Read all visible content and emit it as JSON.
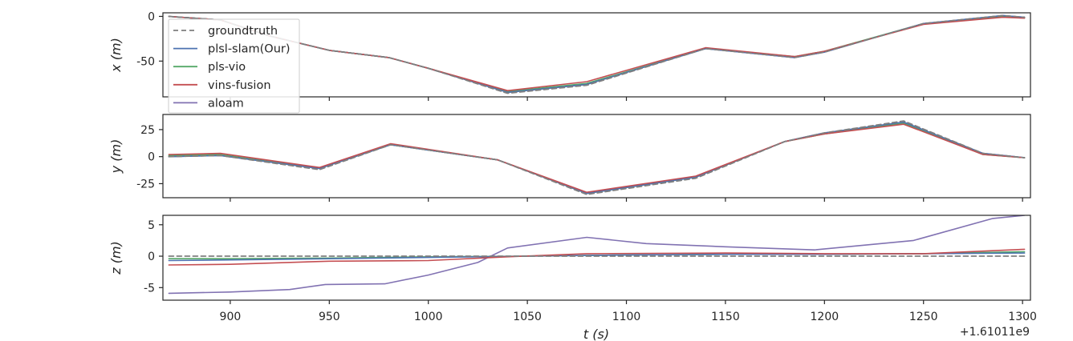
{
  "chart_data": {
    "type": "line",
    "xlabel": "t (s)",
    "x_offset_label": "+1.61011e9",
    "xlim": [
      866,
      1304
    ],
    "xticks": [
      900,
      950,
      1000,
      1050,
      1100,
      1150,
      1200,
      1250,
      1300
    ],
    "colors": {
      "groundtruth": "#7f7f7f",
      "plsl-slam(Our)": "#4c72b0",
      "pls-vio": "#55a868",
      "vins-fusion": "#c44e52",
      "aloam": "#8172b2"
    },
    "legend": {
      "placement": "upper-left",
      "entries": [
        {
          "name": "groundtruth",
          "style": "dashed"
        },
        {
          "name": "plsl-slam(Our)",
          "style": "solid"
        },
        {
          "name": "pls-vio",
          "style": "solid"
        },
        {
          "name": "vins-fusion",
          "style": "solid"
        },
        {
          "name": "aloam",
          "style": "solid"
        }
      ]
    },
    "panels": [
      {
        "ylabel": "x (m)",
        "ylim": [
          -90,
          4
        ],
        "yticks": [
          0,
          -50
        ],
        "series": [
          {
            "name": "groundtruth",
            "x": [
              869,
              895,
              920,
              950,
              980,
              1000,
              1040,
              1080,
              1140,
              1185,
              1200,
              1250,
              1290,
              1301
            ],
            "y": [
              0,
              -4,
              -22,
              -38,
              -46,
              -58,
              -86,
              -77,
              -36,
              -46,
              -40,
              -8,
              1,
              -1
            ]
          },
          {
            "name": "plsl-slam(Our)",
            "x": [
              869,
              895,
              920,
              950,
              980,
              1000,
              1040,
              1080,
              1140,
              1185,
              1200,
              1250,
              1290,
              1301
            ],
            "y": [
              0,
              -4,
              -22,
              -38,
              -46,
              -58,
              -85,
              -76,
              -36,
              -46,
              -40,
              -8,
              1,
              -1
            ]
          },
          {
            "name": "pls-vio",
            "x": [
              869,
              895,
              920,
              950,
              980,
              1000,
              1040,
              1080,
              1140,
              1185,
              1200,
              1250,
              1290,
              1301
            ],
            "y": [
              0,
              -4,
              -22,
              -38,
              -46,
              -58,
              -84,
              -75,
              -36,
              -45,
              -39,
              -8,
              0,
              -1
            ]
          },
          {
            "name": "vins-fusion",
            "x": [
              869,
              895,
              920,
              950,
              980,
              1000,
              1040,
              1080,
              1140,
              1185,
              1200,
              1250,
              1290,
              1301
            ],
            "y": [
              0,
              -4,
              -22,
              -38,
              -46,
              -58,
              -83,
              -73,
              -35,
              -45,
              -39,
              -9,
              -1,
              -2
            ]
          },
          {
            "name": "aloam",
            "x": [
              869,
              895,
              920,
              950,
              980,
              1000,
              1040,
              1080,
              1140,
              1185,
              1200,
              1250,
              1290,
              1301
            ],
            "y": [
              0,
              -4,
              -22,
              -38,
              -46,
              -58,
              -85,
              -76,
              -36,
              -46,
              -40,
              -8,
              1,
              -1
            ]
          }
        ]
      },
      {
        "ylabel": "y (m)",
        "ylim": [
          -38,
          39
        ],
        "yticks": [
          25,
          0,
          -25
        ],
        "series": [
          {
            "name": "groundtruth",
            "x": [
              869,
              895,
              945,
              981,
              1035,
              1080,
              1135,
              1180,
              1200,
              1240,
              1280,
              1301
            ],
            "y": [
              0,
              1,
              -12,
              11,
              -3,
              -35,
              -20,
              14,
              22,
              33,
              3,
              -1
            ]
          },
          {
            "name": "plsl-slam(Our)",
            "x": [
              869,
              895,
              945,
              981,
              1035,
              1080,
              1135,
              1180,
              1200,
              1240,
              1280,
              1301
            ],
            "y": [
              0,
              1,
              -11,
              11,
              -3,
              -34,
              -19,
              14,
              22,
              32,
              3,
              -1
            ]
          },
          {
            "name": "pls-vio",
            "x": [
              869,
              895,
              945,
              981,
              1035,
              1080,
              1135,
              1180,
              1200,
              1240,
              1280,
              1301
            ],
            "y": [
              1,
              2,
              -11,
              11,
              -3,
              -34,
              -19,
              14,
              21,
              31,
              2,
              -1
            ]
          },
          {
            "name": "vins-fusion",
            "x": [
              869,
              895,
              945,
              981,
              1035,
              1080,
              1135,
              1180,
              1200,
              1240,
              1280,
              1301
            ],
            "y": [
              2,
              3,
              -10,
              12,
              -3,
              -33,
              -18,
              14,
              21,
              30,
              2,
              -1
            ]
          },
          {
            "name": "aloam",
            "x": [
              869,
              895,
              945,
              981,
              1035,
              1080,
              1135,
              1180,
              1200,
              1240,
              1280,
              1301
            ],
            "y": [
              0,
              1,
              -11,
              11,
              -3,
              -34,
              -19,
              14,
              22,
              32,
              3,
              -1
            ]
          }
        ]
      },
      {
        "ylabel": "z (m)",
        "ylim": [
          -7,
          6.5
        ],
        "yticks": [
          5,
          0,
          -5
        ],
        "series": [
          {
            "name": "groundtruth",
            "x": [
              869,
              1301
            ],
            "y": [
              0,
              0
            ]
          },
          {
            "name": "plsl-slam(Our)",
            "x": [
              869,
              900,
              950,
              1000,
              1050,
              1100,
              1150,
              1200,
              1250,
              1301
            ],
            "y": [
              -0.7,
              -0.6,
              -0.4,
              -0.2,
              0,
              0.2,
              0.3,
              0.3,
              0.4,
              0.5
            ]
          },
          {
            "name": "pls-vio",
            "x": [
              869,
              900,
              950,
              1000,
              1050,
              1100,
              1150,
              1200,
              1250,
              1301
            ],
            "y": [
              -0.4,
              -0.4,
              -0.3,
              -0.1,
              0,
              0.2,
              0.3,
              0.3,
              0.4,
              0.7
            ]
          },
          {
            "name": "vins-fusion",
            "x": [
              869,
              900,
              950,
              1000,
              1040,
              1080,
              1150,
              1200,
              1250,
              1301
            ],
            "y": [
              -1.4,
              -1.3,
              -0.8,
              -0.7,
              -0.1,
              0.4,
              0.5,
              0.4,
              0.4,
              1.1
            ]
          },
          {
            "name": "aloam",
            "x": [
              869,
              900,
              930,
              948,
              978,
              1000,
              1025,
              1040,
              1080,
              1110,
              1150,
              1195,
              1245,
              1285,
              1301
            ],
            "y": [
              -5.9,
              -5.7,
              -5.3,
              -4.5,
              -4.4,
              -3,
              -1,
              1.3,
              3,
              2,
              1.5,
              1,
              2.5,
              6,
              6.5
            ]
          }
        ]
      }
    ]
  }
}
